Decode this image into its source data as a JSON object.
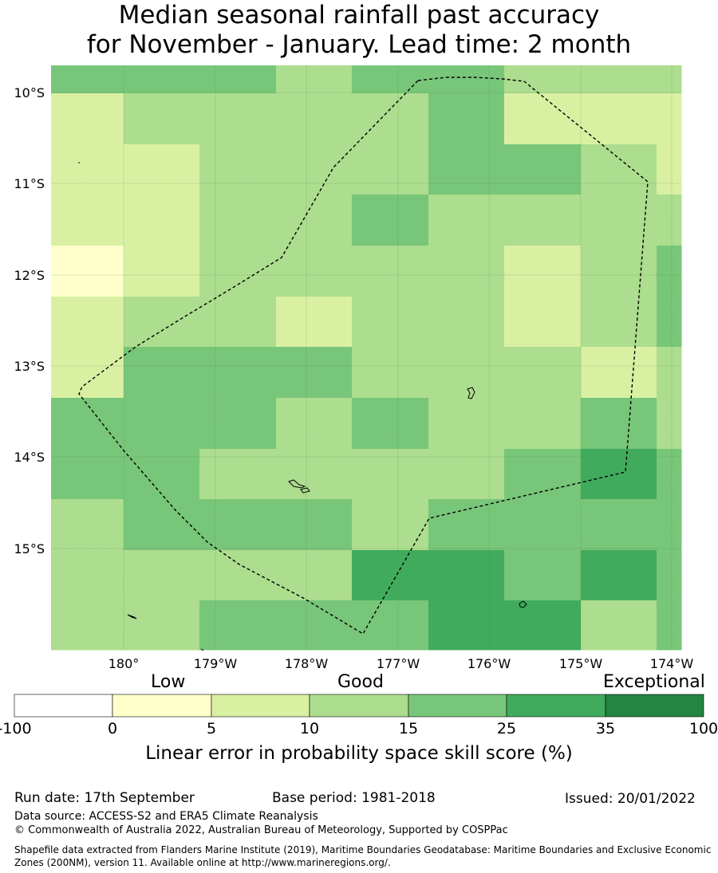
{
  "title": {
    "line1": "Median seasonal rainfall past accuracy",
    "line2": "for November - January. Lead time: 2 month"
  },
  "map": {
    "lat_labels": [
      "10°S",
      "11°S",
      "12°S",
      "13°S",
      "14°S",
      "15°S"
    ],
    "lon_labels": [
      "180°",
      "179°W",
      "178°W",
      "177°W",
      "176°W",
      "175°W",
      "174°W"
    ],
    "category_colors": {
      "0-5": "#ffffcc",
      "5-10": "#d9f0a3",
      "10-15": "#addd8e",
      "15-25": "#78c679",
      "25-35": "#41ab5d",
      "35-100": "#238443"
    },
    "grid_categories": [
      [
        "15-25",
        "15-25",
        "15-25",
        "10-15",
        "15-25",
        "15-25",
        "10-15",
        "10-15",
        "10-15"
      ],
      [
        "5-10",
        "10-15",
        "10-15",
        "10-15",
        "10-15",
        "15-25",
        "5-10",
        "5-10",
        "5-10"
      ],
      [
        "5-10",
        "5-10",
        "10-15",
        "10-15",
        "10-15",
        "15-25",
        "15-25",
        "10-15",
        "5-10"
      ],
      [
        "5-10",
        "5-10",
        "10-15",
        "10-15",
        "15-25",
        "10-15",
        "10-15",
        "10-15",
        "10-15"
      ],
      [
        "0-5",
        "5-10",
        "10-15",
        "10-15",
        "10-15",
        "10-15",
        "5-10",
        "10-15",
        "15-25"
      ],
      [
        "5-10",
        "10-15",
        "10-15",
        "5-10",
        "10-15",
        "10-15",
        "5-10",
        "10-15",
        "15-25"
      ],
      [
        "5-10",
        "15-25",
        "15-25",
        "15-25",
        "10-15",
        "10-15",
        "10-15",
        "5-10",
        "10-15"
      ],
      [
        "15-25",
        "15-25",
        "15-25",
        "10-15",
        "15-25",
        "10-15",
        "10-15",
        "15-25",
        "10-15"
      ],
      [
        "15-25",
        "15-25",
        "10-15",
        "10-15",
        "10-15",
        "10-15",
        "15-25",
        "25-35",
        "15-25"
      ],
      [
        "10-15",
        "15-25",
        "15-25",
        "15-25",
        "10-15",
        "15-25",
        "15-25",
        "15-25",
        "15-25"
      ],
      [
        "10-15",
        "10-15",
        "10-15",
        "10-15",
        "25-35",
        "25-35",
        "15-25",
        "25-35",
        "15-25"
      ],
      [
        "10-15",
        "10-15",
        "15-25",
        "15-25",
        "15-25",
        "25-35",
        "25-35",
        "10-15",
        "15-25"
      ]
    ]
  },
  "legend": {
    "categories": [
      "Low",
      "Good",
      "Exceptional"
    ],
    "ticks": [
      "-100",
      "0",
      "5",
      "10",
      "15",
      "25",
      "35",
      "100"
    ],
    "colors": [
      "#ffffff",
      "#ffffcc",
      "#d9f0a3",
      "#addd8e",
      "#78c679",
      "#41ab5d",
      "#238443"
    ],
    "title": "Linear error in probability space skill score (%)"
  },
  "footer": {
    "run_date": "Run date: 17th September",
    "base_period": "Base period: 1981-2018",
    "issued": "Issued: 20/01/2022",
    "data_source": "Data source: ACCESS-S2 and ERA5 Climate Reanalysis",
    "copyright": "© Commonwealth of Australia 2022, Australian Bureau of Meteorology, Supported by COSPPac",
    "shapefile_1": "Shapefile data extracted from Flanders Marine Institute (2019), Maritime Boundaries Geodatabase: Maritime Boundaries and Exclusive Economic",
    "shapefile_2": "Zones (200NM), version 11. Available online at http://www.marineregions.org/."
  }
}
